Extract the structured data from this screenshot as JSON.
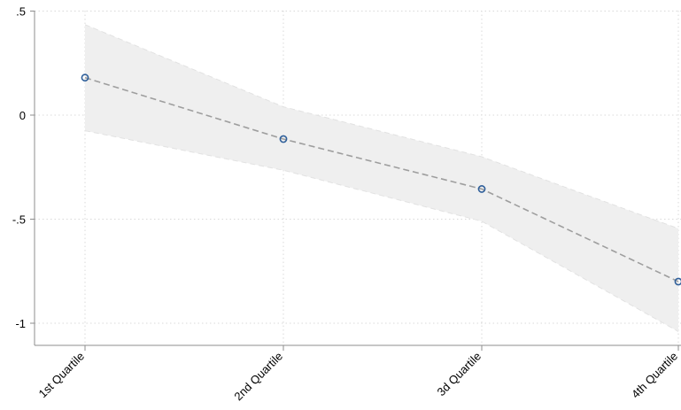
{
  "chart_data": {
    "type": "line",
    "categories": [
      "1st Quartile",
      "2nd Quartile",
      "3d Quartile",
      "4th Quartile"
    ],
    "series": [
      {
        "values": [
          0.18,
          -0.115,
          -0.355,
          -0.8
        ],
        "ci_lower": [
          -0.075,
          -0.265,
          -0.51,
          -1.04
        ],
        "ci_upper": [
          0.435,
          0.04,
          -0.2,
          -0.545
        ]
      }
    ],
    "y_ticks": [
      ".5",
      "0",
      "-.5",
      "-1"
    ],
    "y_tick_values": [
      0.5,
      0,
      -0.5,
      -1
    ],
    "ylim": [
      -1.05,
      0.5
    ],
    "grid": true,
    "colors": {
      "marker": "#2f5f9a",
      "line": "#9e9e9e",
      "band": "#efefef",
      "band_edge": "#e2e2e2"
    }
  }
}
